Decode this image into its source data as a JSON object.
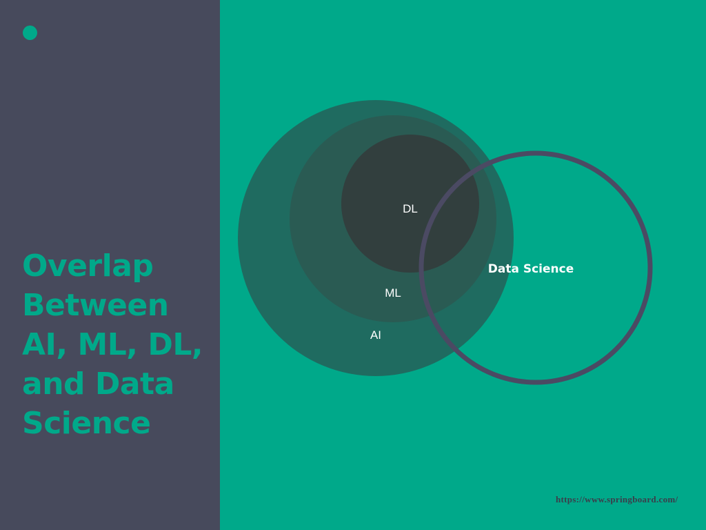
{
  "sidebar": {
    "title_lines": [
      "Overlap",
      "Between",
      "AI, ML, DL,",
      "and Data",
      "Science"
    ]
  },
  "diagram": {
    "labels": {
      "dl": "DL",
      "ml": "ML",
      "ai": "AI",
      "data_science": "Data Science"
    }
  },
  "footer": {
    "url": "https://www.springboard.com/"
  },
  "colors": {
    "sidebar_bg": "#474a5c",
    "main_bg": "#00a98a",
    "accent_green": "#00a98a",
    "ai_circle": "#1f6b60",
    "ml_circle": "#2a5b53",
    "dl_circle": "#323f3e",
    "ds_ring": "#4b4a63",
    "label_text": "#ffffff",
    "url_text": "#3b3d4a"
  }
}
